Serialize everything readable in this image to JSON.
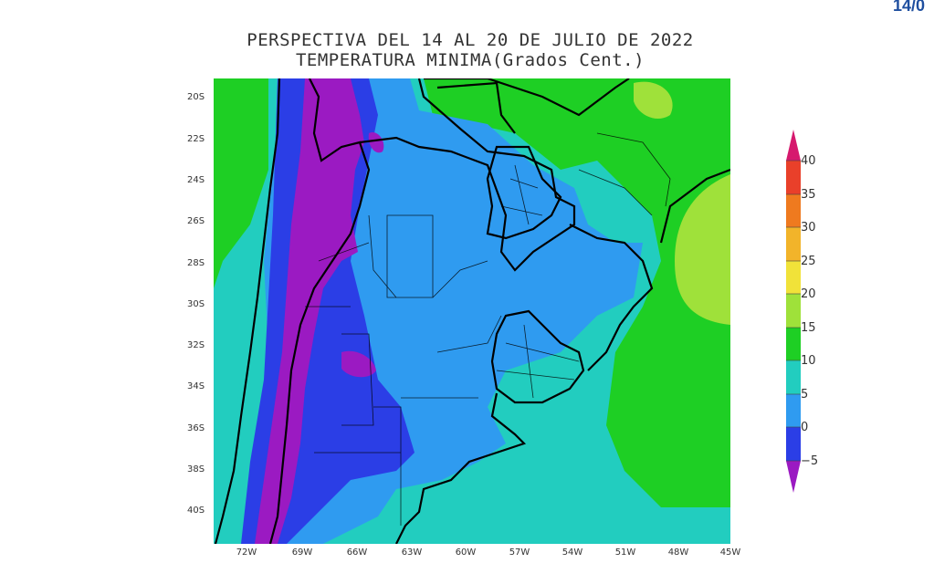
{
  "corner_label": "14/0",
  "title_line1": "PERSPECTIVA DEL 14 AL 20 DE JULIO DE 2022",
  "title_line2": "TEMPERATURA MINIMA(Grados Cent.)",
  "lat_labels": [
    "20S",
    "22S",
    "24S",
    "26S",
    "28S",
    "30S",
    "32S",
    "34S",
    "36S",
    "38S",
    "40S"
  ],
  "lon_labels": [
    "72W",
    "69W",
    "66W",
    "63W",
    "60W",
    "57W",
    "54W",
    "51W",
    "48W",
    "45W"
  ],
  "colorbar_labels": [
    "40",
    "35",
    "30",
    "25",
    "20",
    "15",
    "10",
    "5",
    "0",
    "−5"
  ],
  "colors": {
    "below_minus5": "#9b1ac2",
    "minus5_0": "#2b3ee6",
    "0_5": "#2f9bf0",
    "5_10": "#22cdbf",
    "10_15": "#1ecf24",
    "15_20": "#9fe13a",
    "20_25": "#f1e239",
    "25_30": "#f2b42a",
    "30_35": "#ef7a1f",
    "35_40": "#e9402a",
    "above_40": "#d6196e"
  }
}
